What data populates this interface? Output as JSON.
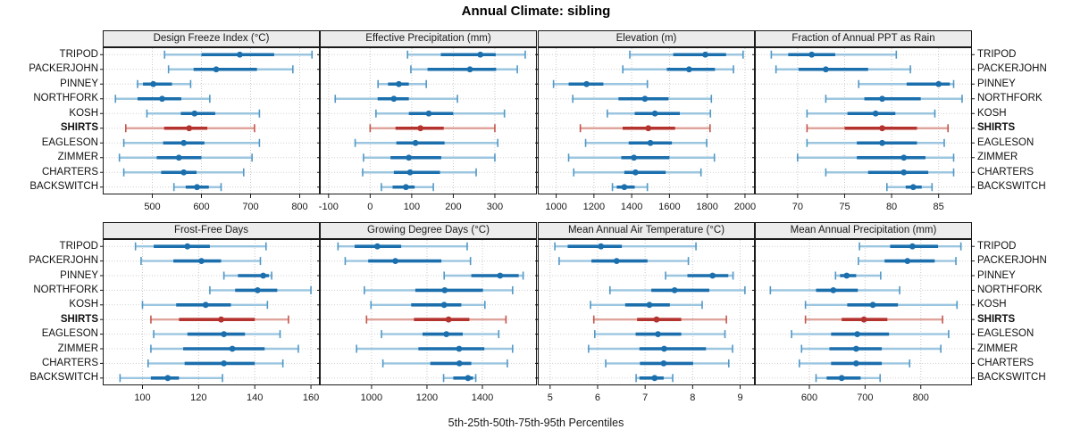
{
  "title": "Annual Climate: sibling",
  "footer_label": "5th-25th-50th-75th-95th Percentiles",
  "colors": {
    "series_main": "#1b6fad",
    "series_light": "#9cc6e0",
    "series_cap": "#5098c6",
    "highlight_main": "#b5332e",
    "highlight_light": "#dfa49c",
    "highlight_cap": "#c5554c",
    "header_bg": "#ececec",
    "grid_vertical": "#c9c9c9",
    "grid_horizontal": "#cfcfcf",
    "border": "#1a1a1a"
  },
  "chart_data": {
    "type": "dot-whisker-trellis",
    "percentiles": [
      "5th",
      "25th",
      "50th",
      "75th",
      "95th"
    ],
    "sites": [
      "TRIPOD",
      "PACKERJOHN",
      "PINNEY",
      "NORTHFORK",
      "KOSH",
      "SHIRTS",
      "EAGLESON",
      "ZIMMER",
      "CHARTERS",
      "BACKSWITCH"
    ],
    "highlight_site": "SHIRTS",
    "legend_position": "none",
    "grid": "dotted",
    "panels": [
      {
        "title": "Design Freeze Index (°C)",
        "row": 0,
        "xlim": [
          400,
          840
        ],
        "ticks": [
          500,
          600,
          700,
          800
        ],
        "values": {
          "TRIPOD": [
            525,
            600,
            678,
            748,
            825
          ],
          "PACKERJOHN": [
            533,
            584,
            630,
            713,
            786
          ],
          "PINNEY": [
            470,
            481,
            502,
            540,
            578
          ],
          "NORTHFORK": [
            425,
            470,
            520,
            559,
            617
          ],
          "KOSH": [
            489,
            558,
            586,
            628,
            718
          ],
          "SHIRTS": [
            446,
            524,
            575,
            612,
            708
          ],
          "EAGLESON": [
            442,
            522,
            564,
            606,
            718
          ],
          "ZIMMER": [
            433,
            509,
            554,
            600,
            703
          ],
          "CHARTERS": [
            442,
            518,
            564,
            590,
            686
          ],
          "BACKSWITCH": [
            544,
            568,
            591,
            615,
            640
          ]
        }
      },
      {
        "title": "Effective Precipitation (mm)",
        "row": 0,
        "xlim": [
          -120,
          400
        ],
        "ticks": [
          -100,
          0,
          100,
          200,
          300
        ],
        "values": {
          "TRIPOD": [
            90,
            170,
            265,
            302,
            373
          ],
          "PACKERJOHN": [
            98,
            138,
            240,
            303,
            354
          ],
          "PINNEY": [
            19,
            43,
            69,
            93,
            135
          ],
          "NORTHFORK": [
            -84,
            18,
            57,
            93,
            210
          ],
          "KOSH": [
            14,
            93,
            141,
            200,
            323
          ],
          "SHIRTS": [
            0,
            61,
            121,
            177,
            300
          ],
          "EAGLESON": [
            -36,
            63,
            109,
            179,
            307
          ],
          "ZIMMER": [
            -16,
            49,
            93,
            171,
            300
          ],
          "CHARTERS": [
            -18,
            57,
            96,
            168,
            255
          ],
          "BACKSWITCH": [
            27,
            54,
            86,
            107,
            152
          ]
        }
      },
      {
        "title": "Elevation (m)",
        "row": 0,
        "xlim": [
          905,
          2050
        ],
        "ticks": [
          1000,
          1200,
          1400,
          1600,
          1800,
          2000
        ],
        "values": {
          "TRIPOD": [
            1390,
            1620,
            1790,
            1900,
            1990
          ],
          "PACKERJOHN": [
            1353,
            1586,
            1704,
            1841,
            1939
          ],
          "PINNEY": [
            986,
            1066,
            1161,
            1250,
            1483
          ],
          "NORTHFORK": [
            1088,
            1330,
            1470,
            1595,
            1822
          ],
          "KOSH": [
            1271,
            1416,
            1523,
            1655,
            1817
          ],
          "SHIRTS": [
            1128,
            1352,
            1488,
            1630,
            1815
          ],
          "EAGLESON": [
            1156,
            1384,
            1499,
            1613,
            1797
          ],
          "ZIMMER": [
            1066,
            1345,
            1412,
            1600,
            1838
          ],
          "CHARTERS": [
            1093,
            1361,
            1420,
            1580,
            1767
          ],
          "BACKSWITCH": [
            1298,
            1321,
            1361,
            1416,
            1483
          ]
        }
      },
      {
        "title": "Fraction of Annual PPT as Rain",
        "row": 0,
        "xlim": [
          65.5,
          88.5
        ],
        "ticks": [
          70,
          75,
          80,
          85
        ],
        "values": {
          "TRIPOD": [
            67.2,
            69.0,
            71.5,
            74.0,
            80.5
          ],
          "PACKERJOHN": [
            67.7,
            70.1,
            73.0,
            77.5,
            82.0
          ],
          "PINNEY": [
            76.5,
            81.6,
            85.0,
            86.2,
            86.6
          ],
          "NORTHFORK": [
            73.0,
            77.1,
            79.0,
            83.1,
            87.5
          ],
          "KOSH": [
            71.0,
            75.3,
            78.3,
            80.4,
            84.6
          ],
          "SHIRTS": [
            71.0,
            75.0,
            79.0,
            82.7,
            86.0
          ],
          "EAGLESON": [
            71.0,
            76.3,
            79.0,
            82.7,
            85.6
          ],
          "ZIMMER": [
            70.0,
            76.3,
            81.3,
            83.6,
            86.6
          ],
          "CHARTERS": [
            73.0,
            77.5,
            81.3,
            83.9,
            86.6
          ],
          "BACKSWITCH": [
            79.5,
            81.5,
            82.3,
            83.2,
            84.3
          ]
        }
      },
      {
        "title": "Frost-Free Days",
        "row": 1,
        "xlim": [
          86,
          163
        ],
        "ticks": [
          100,
          120,
          140,
          160
        ],
        "values": {
          "TRIPOD": [
            97.5,
            104,
            116,
            124,
            144
          ],
          "PACKERJOHN": [
            99.5,
            111,
            121,
            128,
            142
          ],
          "PINNEY": [
            129,
            134,
            143,
            145,
            146
          ],
          "NORTHFORK": [
            124,
            133,
            141,
            148,
            160
          ],
          "KOSH": [
            100,
            112,
            122.5,
            131.5,
            144.5
          ],
          "SHIRTS": [
            103,
            113,
            128,
            140,
            152
          ],
          "EAGLESON": [
            104,
            116,
            129,
            136.5,
            149
          ],
          "ZIMMER": [
            103,
            114.5,
            132,
            143.5,
            155.5
          ],
          "CHARTERS": [
            102,
            115,
            129,
            140,
            150
          ],
          "BACKSWITCH": [
            92,
            103,
            109,
            113,
            128.5
          ]
        }
      },
      {
        "title": "Growing Degree Days (°C)",
        "row": 1,
        "xlim": [
          815,
          1595
        ],
        "ticks": [
          1000,
          1200,
          1400
        ],
        "values": {
          "TRIPOD": [
            879,
            939,
            1021,
            1107,
            1345
          ],
          "PACKERJOHN": [
            905,
            988,
            1086,
            1252,
            1357
          ],
          "PINNEY": [
            1262,
            1360,
            1464,
            1531,
            1547
          ],
          "NORTHFORK": [
            974,
            1158,
            1264,
            1402,
            1509
          ],
          "KOSH": [
            998,
            1143,
            1262,
            1324,
            1409
          ],
          "SHIRTS": [
            982,
            1153,
            1278,
            1353,
            1485
          ],
          "EAGLESON": [
            1036,
            1184,
            1270,
            1329,
            1459
          ],
          "ZIMMER": [
            946,
            1169,
            1316,
            1407,
            1509
          ],
          "CHARTERS": [
            1041,
            1212,
            1317,
            1360,
            1490
          ],
          "BACKSWITCH": [
            1260,
            1295,
            1348,
            1366,
            1376
          ]
        }
      },
      {
        "title": "Mean Annual Air Temperature (°C)",
        "row": 1,
        "xlim": [
          4.75,
          9.3
        ],
        "ticks": [
          5,
          6,
          7,
          8,
          9
        ],
        "values": {
          "TRIPOD": [
            5.1,
            5.37,
            6.07,
            6.51,
            8.07
          ],
          "PACKERJOHN": [
            5.19,
            5.87,
            6.4,
            7.05,
            7.91
          ],
          "PINNEY": [
            7.43,
            7.89,
            8.42,
            8.75,
            8.85
          ],
          "NORTHFORK": [
            6.26,
            7.13,
            7.62,
            8.35,
            9.1
          ],
          "KOSH": [
            5.85,
            6.58,
            7.09,
            7.52,
            8.2
          ],
          "SHIRTS": [
            5.92,
            6.83,
            7.24,
            7.76,
            8.71
          ],
          "EAGLESON": [
            5.94,
            6.8,
            7.27,
            7.76,
            8.68
          ],
          "ZIMMER": [
            5.81,
            6.88,
            7.4,
            8.28,
            8.84
          ],
          "CHARTERS": [
            6.17,
            6.89,
            7.39,
            8.01,
            8.76
          ],
          "BACKSWITCH": [
            6.81,
            6.88,
            7.2,
            7.39,
            7.58
          ]
        }
      },
      {
        "title": "Mean Annual Precipitation (mm)",
        "row": 1,
        "xlim": [
          503,
          891
        ],
        "ticks": [
          600,
          700,
          800
        ],
        "values": {
          "TRIPOD": [
            690,
            745,
            785,
            831,
            872
          ],
          "PACKERJOHN": [
            688,
            735,
            776,
            825,
            863
          ],
          "PINNEY": [
            647,
            655,
            667,
            684,
            728
          ],
          "NORTHFORK": [
            530,
            612,
            643,
            687,
            762
          ],
          "KOSH": [
            593,
            668,
            714,
            759,
            865
          ],
          "SHIRTS": [
            593,
            658,
            698,
            740,
            839
          ],
          "EAGLESON": [
            568,
            639,
            686,
            743,
            850
          ],
          "ZIMMER": [
            586,
            636,
            684,
            730,
            836
          ],
          "CHARTERS": [
            582,
            639,
            684,
            730,
            780
          ],
          "BACKSWITCH": [
            612,
            631,
            658,
            692,
            727
          ]
        }
      }
    ]
  }
}
